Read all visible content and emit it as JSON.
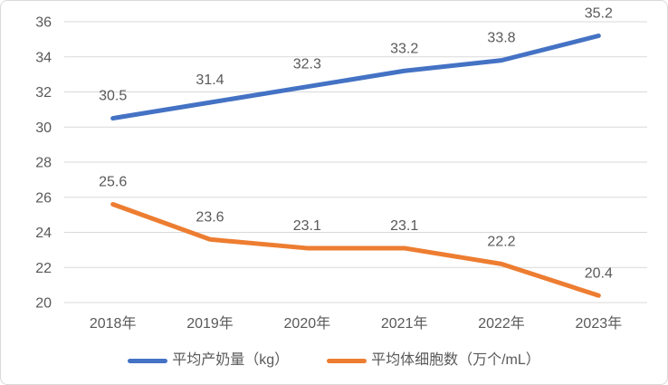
{
  "chart": {
    "background": "#ffffff",
    "border_color": "#d9d9d9",
    "grid_color": "#d9d9d9",
    "axis_text_color": "#595959",
    "data_label_color": "#595959",
    "line_width": 5,
    "axis_font_size": 16,
    "data_label_font_size": 16
  },
  "chart_data": {
    "type": "line",
    "title": "",
    "xlabel": "",
    "ylabel": "",
    "categories": [
      "2018年",
      "2019年",
      "2020年",
      "2021年",
      "2022年",
      "2023年"
    ],
    "series": [
      {
        "name": "平均产奶量（kg）",
        "color": "#4472C4",
        "values": [
          30.5,
          31.4,
          32.3,
          33.2,
          33.8,
          35.2
        ]
      },
      {
        "name": "平均体细胞数（万个/mL）",
        "color": "#ED7D31",
        "values": [
          25.6,
          23.6,
          23.1,
          23.1,
          22.2,
          20.4
        ]
      }
    ],
    "ylim": [
      20,
      36
    ],
    "ytick_step": 2,
    "ytick_labels": [
      "20",
      "22",
      "24",
      "26",
      "28",
      "30",
      "32",
      "34",
      "36"
    ],
    "grid": true,
    "data_labels": true,
    "legend_position": "bottom"
  }
}
